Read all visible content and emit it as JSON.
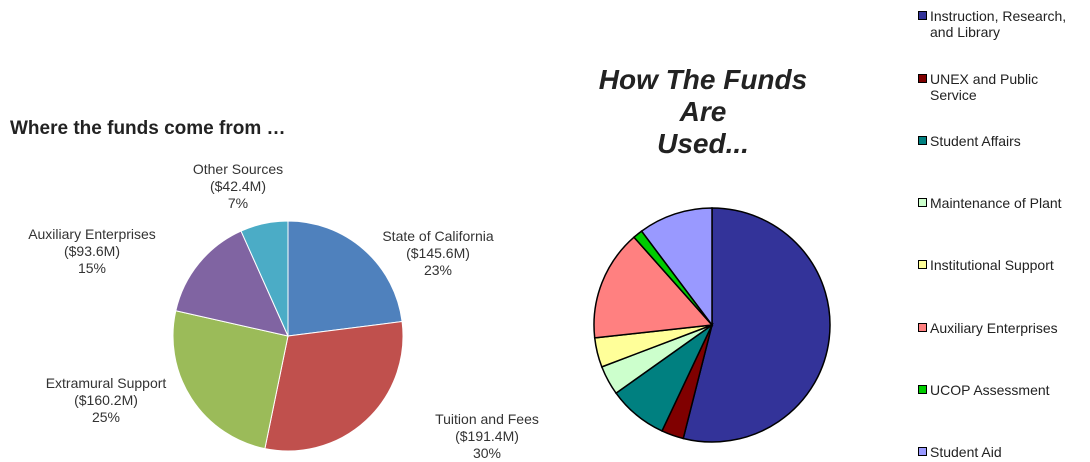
{
  "chart_data": [
    {
      "type": "pie",
      "title": "Where the funds come from …",
      "slices": [
        {
          "label": "State of California",
          "amount": "($145.6M)",
          "pct": "23%",
          "value": 145.6,
          "color": "#4f81bd"
        },
        {
          "label": "Tuition and Fees",
          "amount": "($191.4M)",
          "pct": "30%",
          "value": 191.4,
          "color": "#c0504d"
        },
        {
          "label": "Extramural Support",
          "amount": "($160.2M)",
          "pct": "25%",
          "value": 160.2,
          "color": "#9bbb59"
        },
        {
          "label": "Auxiliary Enterprises",
          "amount": "($93.6M)",
          "pct": "15%",
          "value": 93.6,
          "color": "#8064a2"
        },
        {
          "label": "Other Sources",
          "amount": "($42.4M)",
          "pct": "7%",
          "value": 42.4,
          "color": "#4bacc6"
        }
      ]
    },
    {
      "type": "pie",
      "title": [
        "How The Funds",
        "Are",
        "Used..."
      ],
      "legend_placement": "right",
      "slices": [
        {
          "label": "Instruction, Research,\nand Library",
          "value": 53,
          "color": "#333399"
        },
        {
          "label": "UNEX and Public\nService",
          "value": 3,
          "color": "#800000"
        },
        {
          "label": "Student Affairs",
          "value": 8,
          "color": "#008080"
        },
        {
          "label": "Maintenance of Plant",
          "value": 4,
          "color": "#ccffcc"
        },
        {
          "label": "Institutional Support",
          "value": 4,
          "color": "#ffff99"
        },
        {
          "label": "Auxiliary Enterprises",
          "value": 15,
          "color": "#ff8080"
        },
        {
          "label": "UCOP Assessment",
          "value": 1.3,
          "color": "#00cc00"
        },
        {
          "label": "Student Aid",
          "value": 10,
          "color": "#9999ff"
        }
      ]
    }
  ]
}
